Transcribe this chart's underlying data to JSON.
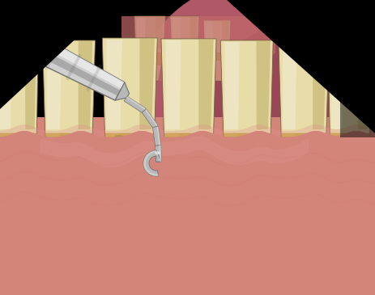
{
  "bg": "#000000",
  "gum_pink": "#d4857a",
  "gum_mid": "#c06868",
  "gum_dark": "#a85060",
  "jaw_dark": "#8a3c4a",
  "jaw_red": "#b05868",
  "tooth_cream": "#e8dda8",
  "tooth_light": "#f0ead0",
  "tooth_mid": "#d4c890",
  "tooth_dark": "#b8a860",
  "tooth_shadow": "#a09050",
  "tartar_main": "#c8a840",
  "tartar_dark": "#a08828",
  "tartar_brown": "#907830",
  "scaler_light": "#e0e0e0",
  "scaler_mid": "#b8b8b8",
  "scaler_dark": "#707070",
  "scaler_vdark": "#404040",
  "handle_grad1": "#d0d0d0",
  "handle_grad2": "#909090",
  "figsize": [
    4.63,
    3.65
  ],
  "dpi": 100
}
